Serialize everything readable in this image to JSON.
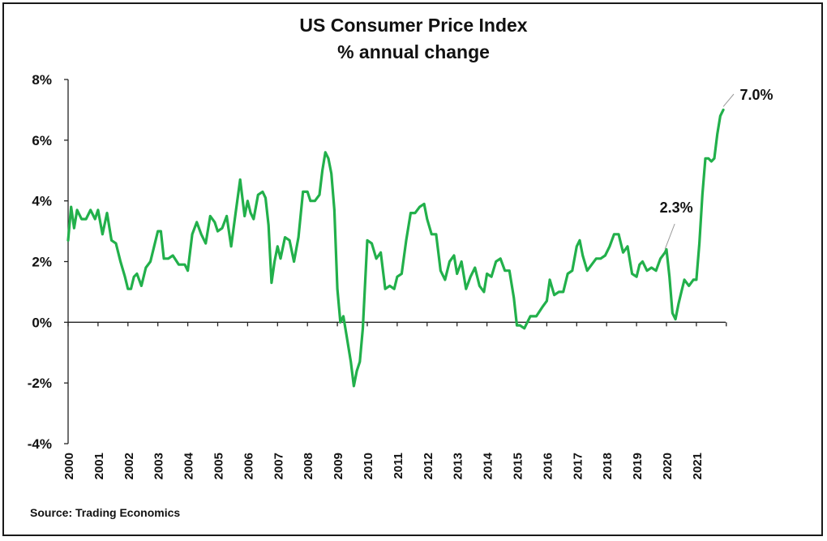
{
  "chart_data": {
    "type": "line",
    "title": "US Consumer Price Index",
    "subtitle": "% annual change",
    "source": "Source: Trading Economics",
    "xlabel": "",
    "ylabel": "",
    "ylim": [
      -4,
      8
    ],
    "xlim": [
      2000,
      2022
    ],
    "grid": false,
    "y_ticks": [
      {
        "value": 8,
        "label": "8%"
      },
      {
        "value": 6,
        "label": "6%"
      },
      {
        "value": 4,
        "label": "4%"
      },
      {
        "value": 2,
        "label": "2%"
      },
      {
        "value": 0,
        "label": "0%"
      },
      {
        "value": -2,
        "label": "-2%"
      },
      {
        "value": -4,
        "label": "-4%"
      }
    ],
    "x_ticks": [
      "2000",
      "2001",
      "2002",
      "2003",
      "2004",
      "2005",
      "2006",
      "2007",
      "2008",
      "2009",
      "2010",
      "2011",
      "2012",
      "2013",
      "2014",
      "2015",
      "2016",
      "2017",
      "2018",
      "2019",
      "2020",
      "2021"
    ],
    "line_color": "#22b04b",
    "series": [
      {
        "x": [
          2000.0,
          2000.1,
          2000.2,
          2000.3,
          2000.45,
          2000.6,
          2000.75,
          2000.9,
          2001.0,
          2001.15,
          2001.3,
          2001.45,
          2001.6,
          2001.75,
          2001.9,
          2002.0,
          2002.1,
          2002.2,
          2002.3,
          2002.45,
          2002.6,
          2002.75,
          2002.9,
          2003.0,
          2003.1,
          2003.2,
          2003.35,
          2003.5,
          2003.7,
          2003.9,
          2004.0,
          2004.15,
          2004.3,
          2004.45,
          2004.6,
          2004.75,
          2004.9,
          2005.0,
          2005.15,
          2005.3,
          2005.45,
          2005.6,
          2005.75,
          2005.9,
          2006.0,
          2006.1,
          2006.2,
          2006.35,
          2006.5,
          2006.6,
          2006.7,
          2006.8,
          2006.9,
          2007.0,
          2007.1,
          2007.25,
          2007.4,
          2007.55,
          2007.7,
          2007.85,
          2008.0,
          2008.1,
          2008.25,
          2008.4,
          2008.5,
          2008.6,
          2008.7,
          2008.8,
          2008.9,
          2009.0,
          2009.1,
          2009.2,
          2009.3,
          2009.45,
          2009.55,
          2009.65,
          2009.75,
          2009.85,
          2010.0,
          2010.15,
          2010.3,
          2010.45,
          2010.6,
          2010.75,
          2010.9,
          2011.0,
          2011.15,
          2011.3,
          2011.45,
          2011.6,
          2011.75,
          2011.9,
          2012.0,
          2012.15,
          2012.3,
          2012.45,
          2012.6,
          2012.75,
          2012.9,
          2013.0,
          2013.15,
          2013.3,
          2013.45,
          2013.6,
          2013.75,
          2013.9,
          2014.0,
          2014.15,
          2014.3,
          2014.45,
          2014.6,
          2014.75,
          2014.9,
          2015.0,
          2015.1,
          2015.25,
          2015.45,
          2015.65,
          2015.85,
          2016.0,
          2016.1,
          2016.25,
          2016.4,
          2016.55,
          2016.7,
          2016.85,
          2017.0,
          2017.1,
          2017.2,
          2017.35,
          2017.5,
          2017.65,
          2017.8,
          2017.95,
          2018.1,
          2018.25,
          2018.4,
          2018.55,
          2018.7,
          2018.85,
          2019.0,
          2019.1,
          2019.2,
          2019.35,
          2019.5,
          2019.65,
          2019.8,
          2019.95,
          2020.0,
          2020.1,
          2020.2,
          2020.3,
          2020.4,
          2020.5,
          2020.6,
          2020.75,
          2020.9,
          2021.0,
          2021.1,
          2021.2,
          2021.3,
          2021.4,
          2021.5,
          2021.6,
          2021.7,
          2021.8,
          2021.9
        ],
        "values": [
          2.7,
          3.8,
          3.1,
          3.7,
          3.4,
          3.4,
          3.7,
          3.4,
          3.7,
          2.9,
          3.6,
          2.7,
          2.6,
          2.0,
          1.5,
          1.1,
          1.1,
          1.5,
          1.6,
          1.2,
          1.8,
          2.0,
          2.6,
          3.0,
          3.0,
          2.1,
          2.1,
          2.2,
          1.9,
          1.9,
          1.7,
          2.9,
          3.3,
          2.9,
          2.6,
          3.5,
          3.3,
          3.0,
          3.1,
          3.5,
          2.5,
          3.6,
          4.7,
          3.5,
          4.0,
          3.6,
          3.4,
          4.2,
          4.3,
          4.1,
          3.2,
          1.3,
          2.0,
          2.5,
          2.1,
          2.8,
          2.7,
          2.0,
          2.8,
          4.3,
          4.3,
          4.0,
          4.0,
          4.2,
          5.0,
          5.6,
          5.4,
          4.9,
          3.7,
          1.1,
          0.0,
          0.2,
          -0.4,
          -1.3,
          -2.1,
          -1.6,
          -1.3,
          -0.2,
          2.7,
          2.6,
          2.1,
          2.3,
          1.1,
          1.2,
          1.1,
          1.5,
          1.6,
          2.7,
          3.6,
          3.6,
          3.8,
          3.9,
          3.4,
          2.9,
          2.9,
          1.7,
          1.4,
          2.0,
          2.2,
          1.6,
          2.0,
          1.1,
          1.5,
          1.8,
          1.2,
          1.0,
          1.6,
          1.5,
          2.0,
          2.1,
          1.7,
          1.7,
          0.8,
          -0.1,
          -0.1,
          -0.2,
          0.2,
          0.2,
          0.5,
          0.7,
          1.4,
          0.9,
          1.0,
          1.0,
          1.6,
          1.7,
          2.5,
          2.7,
          2.2,
          1.7,
          1.9,
          2.1,
          2.1,
          2.2,
          2.5,
          2.9,
          2.9,
          2.3,
          2.5,
          1.6,
          1.5,
          1.9,
          2.0,
          1.7,
          1.8,
          1.7,
          2.1,
          2.3,
          2.4,
          1.5,
          0.3,
          0.1,
          0.6,
          1.0,
          1.4,
          1.2,
          1.4,
          1.4,
          2.6,
          4.2,
          5.4,
          5.4,
          5.3,
          5.4,
          6.2,
          6.8,
          7.0
        ]
      }
    ],
    "annotations": [
      {
        "x": 2019.95,
        "y": 2.3,
        "label": "2.3%"
      },
      {
        "x": 2021.9,
        "y": 7.0,
        "label": "7.0%"
      }
    ]
  }
}
